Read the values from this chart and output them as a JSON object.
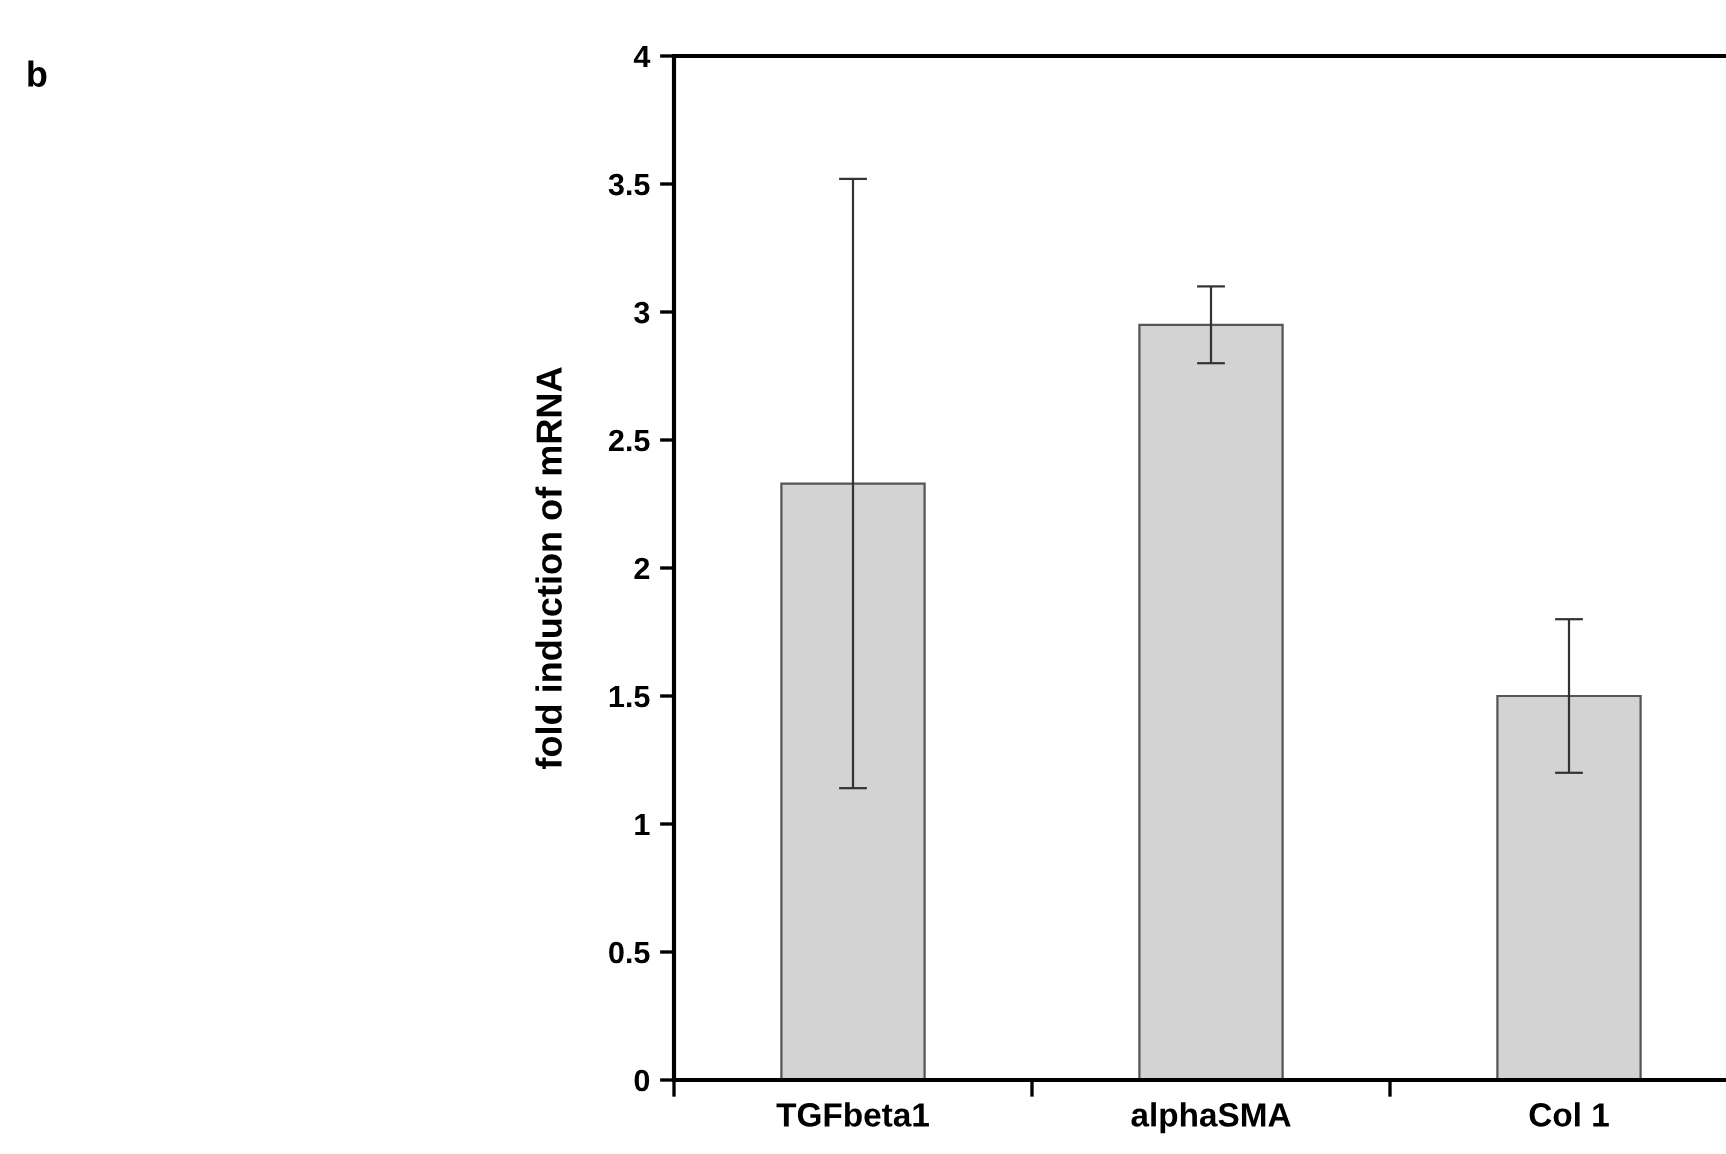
{
  "chart_data": {
    "type": "bar",
    "ylabel": "fold induction of mRNA",
    "categories": [
      "TGFbeta1",
      "alphaSMA",
      "Col 1"
    ],
    "values": [
      2.33,
      2.95,
      1.5
    ],
    "errors": [
      1.19,
      0.15,
      0.3
    ],
    "color": "#d3d3d3",
    "ylim": [
      0,
      4
    ],
    "yticks": [
      0,
      0.5,
      1,
      1.5,
      2,
      2.5,
      3,
      3.5,
      4
    ],
    "grid": false,
    "legend": false,
    "annotations": [
      "b"
    ]
  }
}
